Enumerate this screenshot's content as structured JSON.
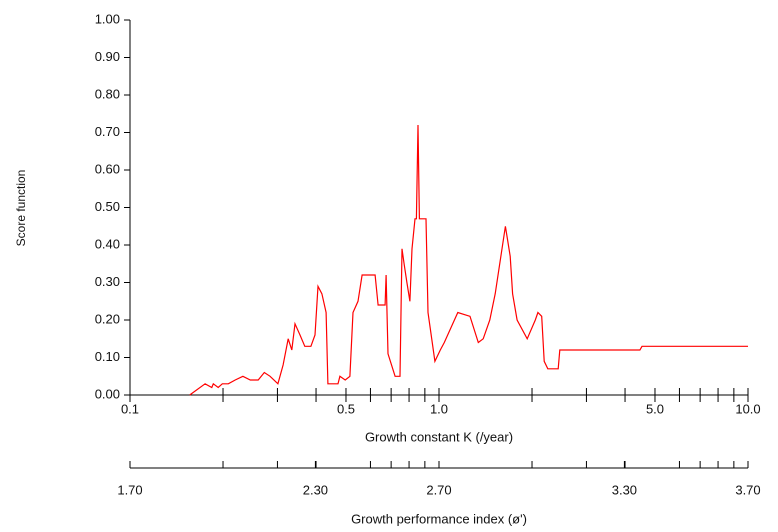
{
  "chart_data": {
    "type": "line",
    "x_label": "Growth constant K (/year)",
    "y_label": "Score function",
    "x2_label": "Growth performance index (ø')",
    "log_x": true,
    "xlim": [
      0.1,
      10
    ],
    "xticks": [
      0.1,
      0.5,
      {
        "value": 1,
        "label": "1.0"
      },
      {
        "value": 5,
        "label": "5.0"
      },
      {
        "value": 10,
        "label": "10.0"
      }
    ],
    "xminorticks": [
      0.2,
      0.3,
      0.4,
      0.6,
      0.7,
      0.8,
      0.9,
      2,
      3,
      4,
      6,
      7,
      8,
      9
    ],
    "x2lim": [
      1.7,
      3.7
    ],
    "x2ticks": [
      {
        "value": 1.7,
        "label": "1.70"
      },
      {
        "value": 2.3,
        "label": "2.30"
      },
      {
        "value": 2.7,
        "label": "2.70"
      },
      {
        "value": 3.3,
        "label": "3.30"
      },
      {
        "value": 3.7,
        "label": "3.70"
      }
    ],
    "ylim": [
      0,
      1
    ],
    "yticks": [
      {
        "value": 0,
        "label": "0.00"
      },
      {
        "value": 0.1,
        "label": "0.10"
      },
      {
        "value": 0.2,
        "label": "0.20"
      },
      {
        "value": 0.3,
        "label": "0.30"
      },
      {
        "value": 0.4,
        "label": "0.40"
      },
      {
        "value": 0.5,
        "label": "0.50"
      },
      {
        "value": 0.6,
        "label": "0.60"
      },
      {
        "value": 0.7,
        "label": "0.70"
      },
      {
        "value": 0.8,
        "label": "0.80"
      },
      {
        "value": 0.9,
        "label": "0.90"
      },
      {
        "value": 1,
        "label": "1.00"
      }
    ],
    "x": [
      0.156,
      0.175,
      0.184,
      0.186,
      0.193,
      0.199,
      0.208,
      0.219,
      0.232,
      0.245,
      0.26,
      0.272,
      0.284,
      0.301,
      0.313,
      0.325,
      0.334,
      0.342,
      0.355,
      0.368,
      0.385,
      0.397,
      0.406,
      0.418,
      0.431,
      0.437,
      0.471,
      0.478,
      0.497,
      0.515,
      0.527,
      0.547,
      0.564,
      0.621,
      0.635,
      0.669,
      0.674,
      0.684,
      0.721,
      0.748,
      0.759,
      0.771,
      0.787,
      0.805,
      0.818,
      0.836,
      0.845,
      0.855,
      0.864,
      0.908,
      0.921,
      0.97,
      1.01,
      1.04,
      1.15,
      1.26,
      1.34,
      1.39,
      1.46,
      1.52,
      1.64,
      1.7,
      1.73,
      1.79,
      1.93,
      2.05,
      2.09,
      2.15,
      2.19,
      2.25,
      2.43,
      2.46,
      4.47,
      4.54,
      10
    ],
    "series": [
      {
        "color": "#ff0000",
        "values": [
          0,
          0.03,
          0.02,
          0.03,
          0.02,
          0.03,
          0.03,
          0.04,
          0.05,
          0.04,
          0.04,
          0.06,
          0.05,
          0.03,
          0.08,
          0.15,
          0.12,
          0.19,
          0.16,
          0.13,
          0.13,
          0.16,
          0.29,
          0.27,
          0.22,
          0.03,
          0.03,
          0.05,
          0.04,
          0.05,
          0.22,
          0.25,
          0.32,
          0.32,
          0.24,
          0.24,
          0.32,
          0.11,
          0.05,
          0.05,
          0.39,
          0.35,
          0.3,
          0.25,
          0.39,
          0.47,
          0.47,
          0.72,
          0.47,
          0.47,
          0.22,
          0.09,
          0.12,
          0.14,
          0.22,
          0.21,
          0.14,
          0.15,
          0.2,
          0.27,
          0.45,
          0.37,
          0.27,
          0.2,
          0.15,
          0.2,
          0.22,
          0.21,
          0.09,
          0.07,
          0.07,
          0.12,
          0.12,
          0.13,
          0.13
        ]
      }
    ]
  }
}
